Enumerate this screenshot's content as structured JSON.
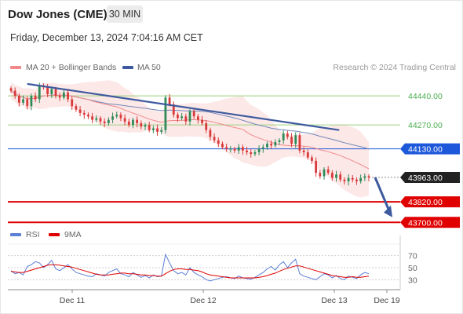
{
  "header": {
    "title": "Dow Jones (CME)",
    "timeframe": "30 MIN",
    "datetime": "Friday, December 13, 2024 7:04:16 AM CET"
  },
  "legend": {
    "ma20_label": "MA 20 + Bollinger Bands",
    "ma50_label": "MA 50",
    "rsi_label": "RSI",
    "rsi_ma_label": "9MA"
  },
  "watermark": "Research © 2024 Trading Central",
  "colors": {
    "up": "#2e8b57",
    "down": "#d93a3a",
    "ma20": "#f08a8a",
    "bollinger_fill": "#fcdede",
    "ma50": "#6f87b8",
    "trendline": "#3d5a9e",
    "resistance_green": "#9bd17e",
    "support_red": "#e00000",
    "pivot_blue": "#1c58d9",
    "rsi": "#5b7fd6",
    "rsi_ma": "#e00000"
  },
  "chart_data": {
    "type": "candlestick",
    "price_axis": {
      "ylim": [
        43660,
        44560
      ]
    },
    "x_ticks": [
      "Dec 11",
      "Dec 12",
      "Dec 13",
      "Dec 19"
    ],
    "levels": [
      {
        "label": "44440.00",
        "value": 44440,
        "kind": "resistance"
      },
      {
        "label": "44270.00",
        "value": 44270,
        "kind": "resistance"
      },
      {
        "label": "44130.00",
        "value": 44130,
        "kind": "pivot"
      },
      {
        "label": "43963.00",
        "value": 43963,
        "kind": "last"
      },
      {
        "label": "43820.00",
        "value": 43820,
        "kind": "support"
      },
      {
        "label": "43700.00",
        "value": 43700,
        "kind": "support"
      }
    ],
    "close": [
      44470,
      44440,
      44400,
      44420,
      44380,
      44440,
      44420,
      44500,
      44490,
      44450,
      44480,
      44440,
      44430,
      44460,
      44420,
      44380,
      44360,
      44340,
      44330,
      44320,
      44300,
      44310,
      44290,
      44280,
      44300,
      44320,
      44330,
      44310,
      44290,
      44270,
      44300,
      44280,
      44260,
      44270,
      44240,
      44250,
      44230,
      44240,
      44430,
      44390,
      44330,
      44310,
      44320,
      44290,
      44350,
      44320,
      44300,
      44280,
      44240,
      44200,
      44180,
      44160,
      44140,
      44130,
      44130,
      44120,
      44140,
      44120,
      44110,
      44100,
      44110,
      44130,
      44140,
      44160,
      44150,
      44170,
      44180,
      44220,
      44200,
      44160,
      44210,
      44120,
      44110,
      44080,
      44060,
      43990,
      43970,
      44010,
      43990,
      43960,
      43980,
      43950,
      43940,
      43960,
      43950,
      43940,
      43960,
      43970,
      43963
    ],
    "rsi": {
      "ylim": [
        20,
        80
      ],
      "ticks": [
        70,
        50,
        30
      ],
      "values": [
        45,
        40,
        42,
        38,
        52,
        55,
        60,
        58,
        50,
        55,
        62,
        48,
        45,
        50,
        55,
        48,
        42,
        40,
        38,
        36,
        35,
        40,
        38,
        36,
        42,
        45,
        48,
        40,
        38,
        35,
        42,
        38,
        34,
        37,
        33,
        38,
        35,
        36,
        72,
        58,
        45,
        40,
        42,
        38,
        50,
        42,
        38,
        35,
        30,
        28,
        30,
        32,
        34,
        35,
        33,
        32,
        36,
        33,
        32,
        31,
        34,
        38,
        42,
        48,
        52,
        46,
        55,
        60,
        50,
        58,
        64,
        40,
        36,
        34,
        32,
        30,
        35,
        40,
        38,
        33,
        37,
        32,
        30,
        36,
        34,
        32,
        38,
        42,
        40
      ],
      "ma9": [
        44,
        43,
        42,
        42,
        44,
        46,
        48,
        50,
        52,
        54,
        55,
        55,
        54,
        53,
        52,
        51,
        49,
        47,
        45,
        43,
        41,
        39,
        38,
        38,
        38,
        39,
        40,
        41,
        41,
        40,
        40,
        39,
        38,
        38,
        37,
        37,
        36,
        36,
        40,
        44,
        47,
        48,
        48,
        47,
        47,
        46,
        45,
        43,
        40,
        38,
        37,
        36,
        35,
        34,
        33,
        33,
        33,
        33,
        33,
        33,
        33,
        34,
        35,
        37,
        39,
        41,
        44,
        47,
        49,
        51,
        53,
        53,
        51,
        49,
        47,
        45,
        43,
        41,
        39,
        37,
        36,
        35,
        34,
        34,
        35,
        34,
        34,
        35,
        36
      ]
    }
  }
}
